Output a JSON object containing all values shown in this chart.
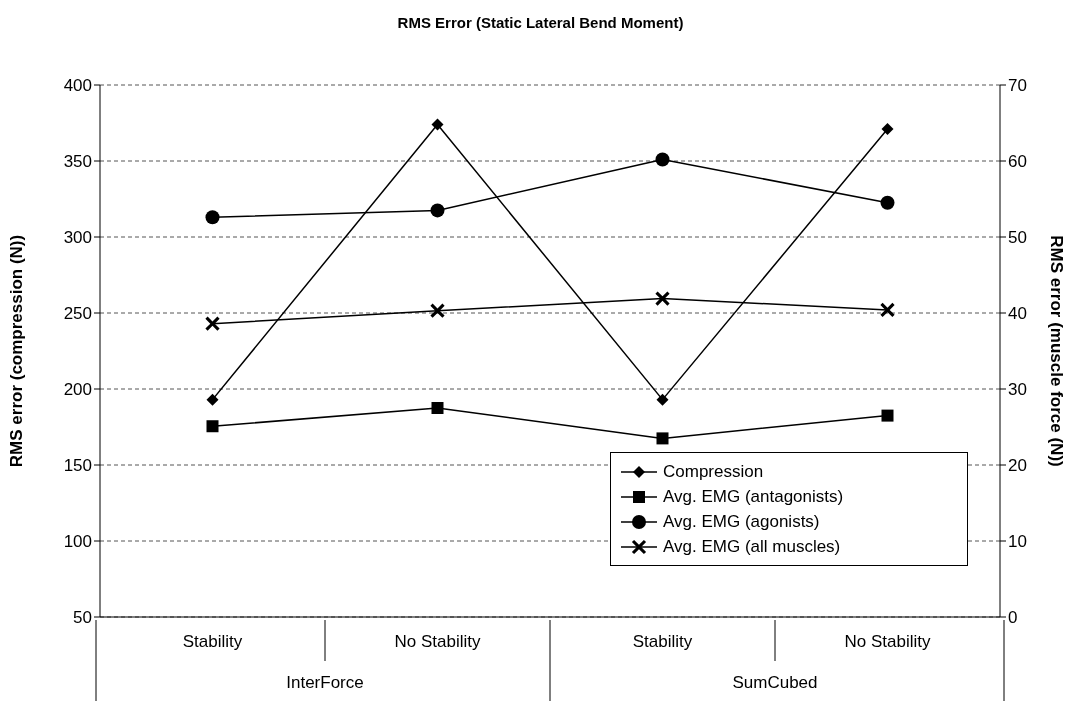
{
  "chart_data": {
    "type": "line",
    "title": "RMS Error (Static Lateral Bend Moment)",
    "ylabel": "RMS error (compression (N))",
    "y2label": "RMS error (muscle force (N))",
    "categories": [
      "Stability",
      "No Stability",
      "Stability",
      "No Stability"
    ],
    "annotations": [
      "InterForce",
      "SumCubed"
    ],
    "series": [
      {
        "name": "Compression",
        "color": "#000000",
        "marker": "diamond",
        "values": [
          193,
          374,
          193,
          371
        ]
      },
      {
        "name": "Avg. EMG (antagonists)",
        "color": "#000000",
        "marker": "square",
        "axis": "y2",
        "values": [
          25.1,
          27.5,
          23.5,
          26.5
        ]
      },
      {
        "name": "Avg. EMG (agonists)",
        "color": "#000000",
        "marker": "circle",
        "axis": "y2",
        "values": [
          52.6,
          53.5,
          60.2,
          54.5
        ]
      },
      {
        "name": "Avg. EMG (all muscles)",
        "color": "#000000",
        "marker": "cross",
        "axis": "y2",
        "values": [
          38.6,
          40.3,
          41.9,
          40.4
        ]
      }
    ],
    "ylim": [
      50,
      400
    ],
    "yticks": [
      50,
      100,
      150,
      200,
      250,
      300,
      350,
      400
    ],
    "y2lim": [
      0,
      70
    ],
    "y2ticks": [
      0,
      10,
      20,
      30,
      40,
      50,
      60,
      70
    ],
    "grid": "y",
    "legend": "bottom right",
    "line_style": "solid"
  }
}
